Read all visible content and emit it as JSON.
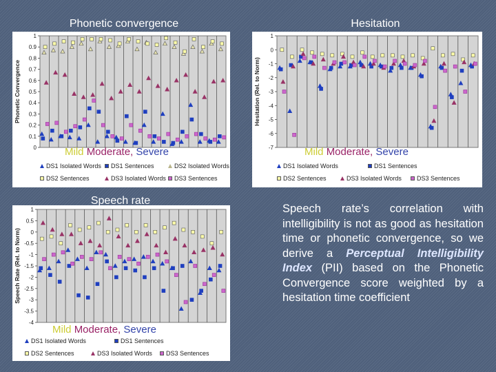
{
  "description": {
    "pre": "Speech rate’s correlation with intelligibility is not as good as hesitation time or phonetic convergence, so we derive a ",
    "emph": "Perceptual Intelligibility Index",
    "mid": " (PII) based on the Phonetic Convergence score weighted by a hesitation time coefficient"
  },
  "severity": {
    "mild": "Mild",
    "moderate": "Moderate,",
    "severe": "Severe"
  },
  "chart_data": [
    {
      "type": "scatter",
      "title": "Phonetic convergence",
      "ylabel": "Phonetic Convergence",
      "ylim": [
        0,
        1
      ],
      "yticks": [
        "0",
        "0.1",
        "0.2",
        "0.3",
        "0.4",
        "0.5",
        "0.6",
        "0.7",
        "0.8",
        "0.9",
        "1"
      ],
      "legend": [
        "DS1 Isolated Words",
        "DS1 Sentences",
        "DS2 Isolated Words",
        "DS2 Sentences",
        "DS3 Isolated Words",
        "DS3 Sentences"
      ],
      "series": [
        {
          "name": "DS1 Isolated Words",
          "values": [
            0.12,
            0.07,
            0.1,
            0.09,
            0.08,
            0.2,
            0.05,
            0.1,
            0.09,
            0.05,
            0.04,
            0.2,
            0.05,
            0.3,
            0.03,
            0.05,
            0.38,
            0.05,
            0.06,
            0.05
          ]
        },
        {
          "name": "DS1 Sentences",
          "values": [
            0.08,
            0.15,
            0.1,
            0.15,
            0.18,
            0.35,
            0.32,
            0.14,
            0.06,
            0.28,
            0.04,
            0.32,
            0.1,
            0.05,
            0.04,
            0.14,
            0.25,
            0.12,
            0.05,
            0.1
          ]
        },
        {
          "name": "DS2 Isolated Words",
          "values": [
            0.85,
            0.87,
            0.86,
            0.9,
            0.93,
            0.88,
            0.95,
            0.9,
            0.91,
            0.95,
            0.88,
            0.94,
            0.85,
            0.93,
            0.9,
            0.84,
            0.9,
            0.86,
            0.93,
            0.88
          ]
        },
        {
          "name": "DS2 Sentences",
          "values": [
            0.9,
            0.93,
            0.95,
            0.94,
            0.97,
            0.97,
            0.97,
            0.96,
            0.93,
            0.97,
            0.95,
            0.93,
            0.92,
            0.98,
            0.94,
            0.86,
            0.97,
            0.9,
            0.95,
            0.93
          ]
        },
        {
          "name": "DS3 Isolated Words",
          "values": [
            0.58,
            0.67,
            0.65,
            0.48,
            0.45,
            0.47,
            0.57,
            0.44,
            0.5,
            0.56,
            0.5,
            0.62,
            0.55,
            0.52,
            0.6,
            0.65,
            0.5,
            0.45,
            0.59,
            0.6
          ]
        },
        {
          "name": "DS3 Sentences",
          "values": [
            0.21,
            0.22,
            0.14,
            0.19,
            0.25,
            0.42,
            0.2,
            0.1,
            0.08,
            0.2,
            0.15,
            0.1,
            0.08,
            0.12,
            0.07,
            0.1,
            0.12,
            0.08,
            0.07,
            0.09
          ]
        }
      ]
    },
    {
      "type": "scatter",
      "title": "Hesitation",
      "ylabel": "Hesitation (Rel. to Norm)",
      "ylim": [
        -7,
        1
      ],
      "yticks": [
        "-7",
        "-6",
        "-5",
        "-4",
        "-3",
        "-2",
        "-1",
        "0",
        "1"
      ],
      "legend": [
        "DS1 Isolated Words",
        "DS1 Sentences",
        "DS2 Sentences",
        "DS3 Isolated Words",
        "DS3 Sentences"
      ],
      "series": [
        {
          "name": "DS1 Isolated Words",
          "values": [
            -1.3,
            -4.4,
            -0.8,
            -0.9,
            -2.6,
            -1.4,
            -1.2,
            -1.2,
            -0.9,
            -1.0,
            -1.1,
            -1.5,
            -1.1,
            -1.3,
            -1.8,
            -5.5,
            -1.2,
            -3.2,
            -2.4,
            -1.1
          ]
        },
        {
          "name": "DS1 Sentences",
          "values": [
            -1.4,
            -1.1,
            -0.5,
            -0.9,
            -2.8,
            -1.3,
            -1.0,
            -1.1,
            -1.1,
            -1.2,
            -1.2,
            -1.3,
            -1.3,
            -1.3,
            -1.9,
            -5.6,
            -1.3,
            -3.4,
            -1.5,
            -1.2
          ]
        },
        {
          "name": "DS2 Sentences",
          "values": [
            0.0,
            -0.5,
            0.0,
            -0.2,
            -0.3,
            -0.4,
            -0.3,
            -0.5,
            -0.2,
            -0.5,
            -0.4,
            -0.4,
            -0.5,
            -0.4,
            -0.6,
            0.1,
            -0.4,
            -0.3,
            -0.7,
            -0.4
          ]
        },
        {
          "name": "DS3 Isolated Words",
          "values": [
            -2.3,
            -1.2,
            -0.3,
            -1.0,
            -0.7,
            -1.0,
            -0.5,
            -0.9,
            -1.2,
            -1.0,
            -1.3,
            -1.0,
            -0.8,
            -1.2,
            -1.0,
            -5.1,
            -1.0,
            -3.8,
            -0.9,
            -1.0
          ]
        },
        {
          "name": "DS3 Sentences",
          "values": [
            -3.0,
            -6.1,
            -0.6,
            -0.5,
            -1.3,
            -0.9,
            -0.9,
            -1.1,
            -0.5,
            -0.8,
            -1.2,
            -0.8,
            -1.0,
            -1.1,
            -0.8,
            -4.1,
            -1.5,
            -1.2,
            -3.0,
            -1.0
          ]
        }
      ]
    },
    {
      "type": "scatter",
      "title": "Speech rate",
      "ylabel": "Speech Rate (Rel. to Norm)",
      "ylim": [
        -4,
        1
      ],
      "yticks": [
        "-4",
        "-3.5",
        "-3",
        "-2.5",
        "-2",
        "-1.5",
        "-1",
        "-0.5",
        "0",
        "0.5",
        "1"
      ],
      "legend": [
        "DS1 Isolated Words",
        "DS1 Sentences",
        "DS2 Sentences",
        "DS3 Isolated Words",
        "DS3 Sentences"
      ],
      "series": [
        {
          "name": "DS1 Isolated Words",
          "values": [
            -1.7,
            -1.6,
            -1.3,
            -0.8,
            -1.2,
            -1.6,
            -0.9,
            -1.0,
            -1.5,
            -1.3,
            -1.2,
            -1.1,
            -1.3,
            -1.4,
            -1.6,
            -3.4,
            -1.3,
            -2.7,
            -1.6,
            -1.7
          ]
        },
        {
          "name": "DS1 Sentences",
          "values": [
            -1.6,
            -1.9,
            -2.2,
            -1.5,
            -2.8,
            -2.9,
            -2.3,
            -1.3,
            -2.0,
            -1.6,
            -1.7,
            -2.0,
            -1.6,
            -2.6,
            -1.6,
            -1.5,
            -3.0,
            -2.6,
            -2.1,
            -1.5
          ]
        },
        {
          "name": "DS2 Sentences",
          "values": [
            -0.3,
            -0.2,
            -0.5,
            0.3,
            0.1,
            0.2,
            0.4,
            0.0,
            0.1,
            0.3,
            0.0,
            0.3,
            0.0,
            0.2,
            0.4,
            0.1,
            0.0,
            -0.2,
            -0.5,
            0.0
          ]
        },
        {
          "name": "DS3 Isolated Words",
          "values": [
            0.4,
            0.1,
            -0.1,
            -0.1,
            -0.5,
            -0.4,
            -0.6,
            0.6,
            -0.2,
            -0.6,
            -0.4,
            -0.1,
            -0.6,
            -0.9,
            -0.3,
            -0.6,
            -0.9,
            -0.8,
            -0.7,
            -1.0
          ]
        },
        {
          "name": "DS3 Sentences",
          "values": [
            -1.2,
            -1.0,
            -0.9,
            -1.4,
            -1.1,
            -1.2,
            -0.9,
            -1.6,
            -1.1,
            -1.2,
            -1.4,
            -1.1,
            -1.0,
            -1.3,
            -1.9,
            -3.1,
            -1.5,
            -2.3,
            -1.9,
            -2.6
          ]
        }
      ]
    }
  ]
}
